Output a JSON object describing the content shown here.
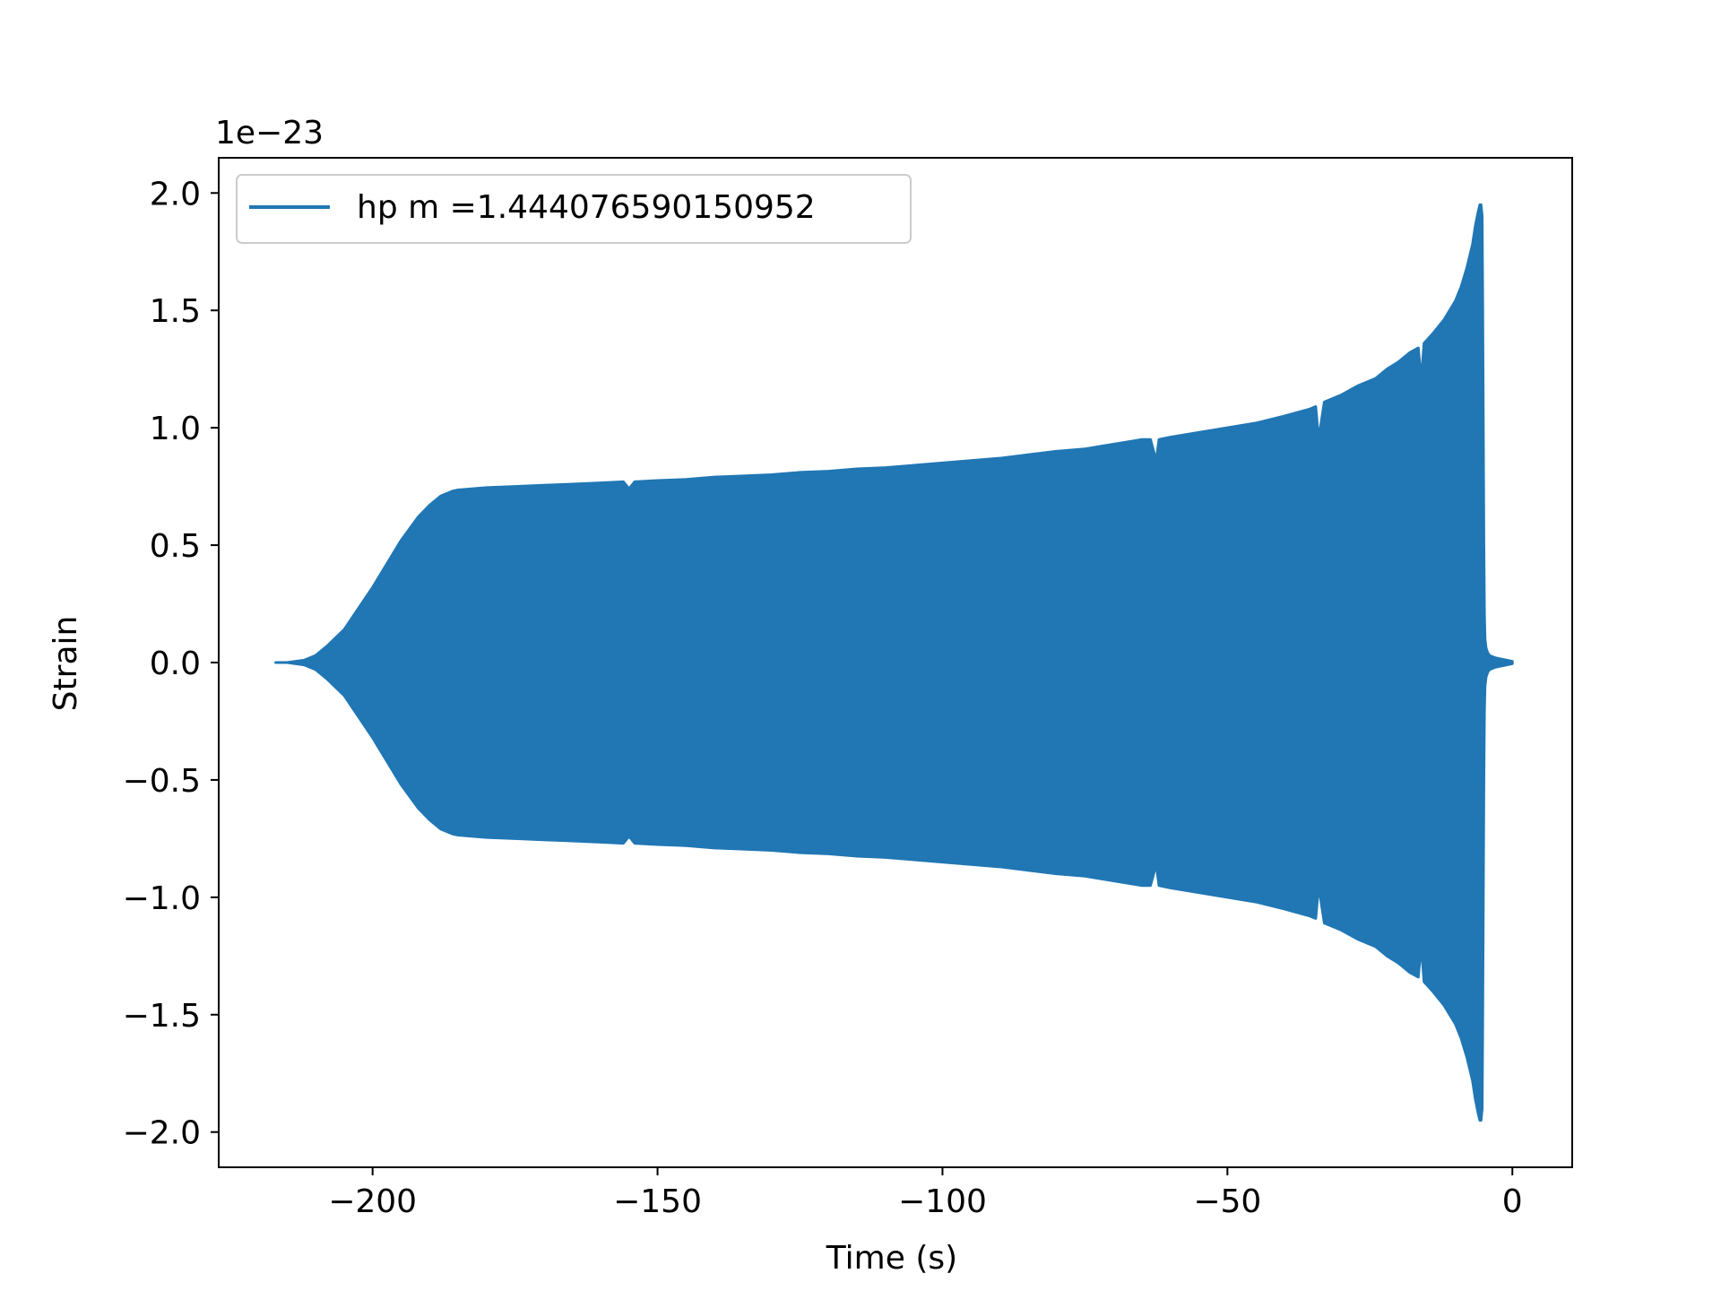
{
  "chart_data": {
    "type": "line",
    "title": "",
    "xlabel": "Time (s)",
    "ylabel": "Strain",
    "offset_label": "1e−23",
    "xlim": [
      -227,
      10.5
    ],
    "ylim": [
      -2.15,
      2.15
    ],
    "xticks": [
      -200,
      -150,
      -100,
      -50,
      0
    ],
    "xtick_labels": [
      "−200",
      "−150",
      "−100",
      "−50",
      "0"
    ],
    "yticks": [
      2.0,
      1.5,
      1.0,
      0.5,
      0.0,
      -0.5,
      -1.0,
      -1.5,
      -2.0
    ],
    "ytick_labels": [
      "2.0",
      "1.5",
      "1.0",
      "0.5",
      "0.0",
      "−0.5",
      "−1.0",
      "−1.5",
      "−2.0"
    ],
    "grid": false,
    "legend_position": "upper-left",
    "series": [
      {
        "name": "hp m =1.444076590150952",
        "color": "#2077b4",
        "envelope": {
          "x": [
            -217,
            -215,
            -212,
            -210,
            -208,
            -205,
            -200,
            -195,
            -192,
            -190,
            -188,
            -186,
            -185,
            -180,
            -175,
            -170,
            -165,
            -160,
            -156,
            -155,
            -154,
            -150,
            -145,
            -140,
            -135,
            -130,
            -125,
            -120,
            -115,
            -110,
            -105,
            -100,
            -95,
            -90,
            -85,
            -80,
            -75,
            -70,
            -65,
            -63.5,
            -62.5,
            -62,
            -60,
            -55,
            -50,
            -45,
            -40,
            -37,
            -35.5,
            -34.5,
            -34,
            -33,
            -30,
            -27,
            -24,
            -22,
            -20,
            -18,
            -16.5,
            -16,
            -15.5,
            -14,
            -12,
            -10,
            -9,
            -8,
            -7,
            -6.5,
            -6,
            -5.7,
            -5.5,
            -5.3,
            -5.2,
            -5.1,
            -5.0,
            -4.9,
            -4.8,
            -4.6,
            -4.3,
            -4,
            -3,
            -2,
            -1,
            0
          ],
          "y": [
            0.0,
            0.0,
            0.01,
            0.03,
            0.07,
            0.14,
            0.32,
            0.52,
            0.62,
            0.67,
            0.71,
            0.73,
            0.735,
            0.745,
            0.75,
            0.755,
            0.76,
            0.765,
            0.77,
            0.74,
            0.77,
            0.775,
            0.78,
            0.79,
            0.795,
            0.8,
            0.81,
            0.815,
            0.825,
            0.83,
            0.84,
            0.85,
            0.86,
            0.87,
            0.885,
            0.9,
            0.91,
            0.93,
            0.95,
            0.95,
            0.86,
            0.95,
            0.96,
            0.98,
            1.0,
            1.02,
            1.05,
            1.07,
            1.08,
            1.09,
            0.95,
            1.11,
            1.14,
            1.18,
            1.21,
            1.25,
            1.28,
            1.32,
            1.34,
            1.2,
            1.36,
            1.4,
            1.46,
            1.54,
            1.6,
            1.68,
            1.78,
            1.86,
            1.92,
            1.95,
            1.95,
            1.9,
            1.5,
            1.0,
            0.5,
            0.2,
            0.1,
            0.06,
            0.04,
            0.03,
            0.02,
            0.015,
            0.01,
            0.005
          ]
        }
      }
    ]
  }
}
